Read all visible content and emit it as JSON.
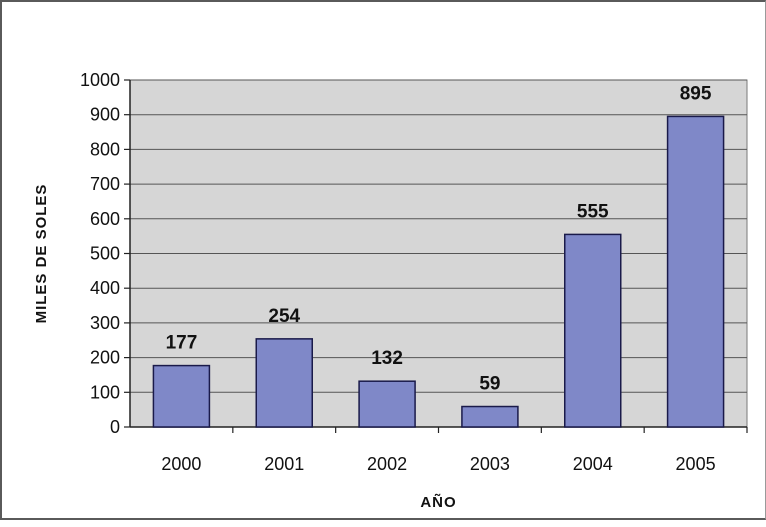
{
  "chart_data": {
    "type": "bar",
    "categories": [
      "2000",
      "2001",
      "2002",
      "2003",
      "2004",
      "2005"
    ],
    "values": [
      177,
      254,
      132,
      59,
      555,
      895
    ],
    "displayed_heights": [
      177,
      254,
      132,
      59,
      555,
      895
    ],
    "data_labels": [
      "177",
      "254",
      "132",
      "59",
      "555",
      "895"
    ],
    "title": "",
    "xlabel": "AÑO",
    "ylabel": "MILES DE SOLES",
    "ylim": [
      0,
      1000
    ],
    "y_ticks": [
      "0",
      "100",
      "200",
      "300",
      "400",
      "500",
      "600",
      "700",
      "800",
      "900",
      "1000"
    ],
    "grid": true,
    "legend": "none",
    "colors": {
      "bar_fill": "#7f88c8",
      "bar_stroke": "#1a1a4a",
      "plot_background": "#d6d6d6",
      "grid": "#555555"
    }
  }
}
